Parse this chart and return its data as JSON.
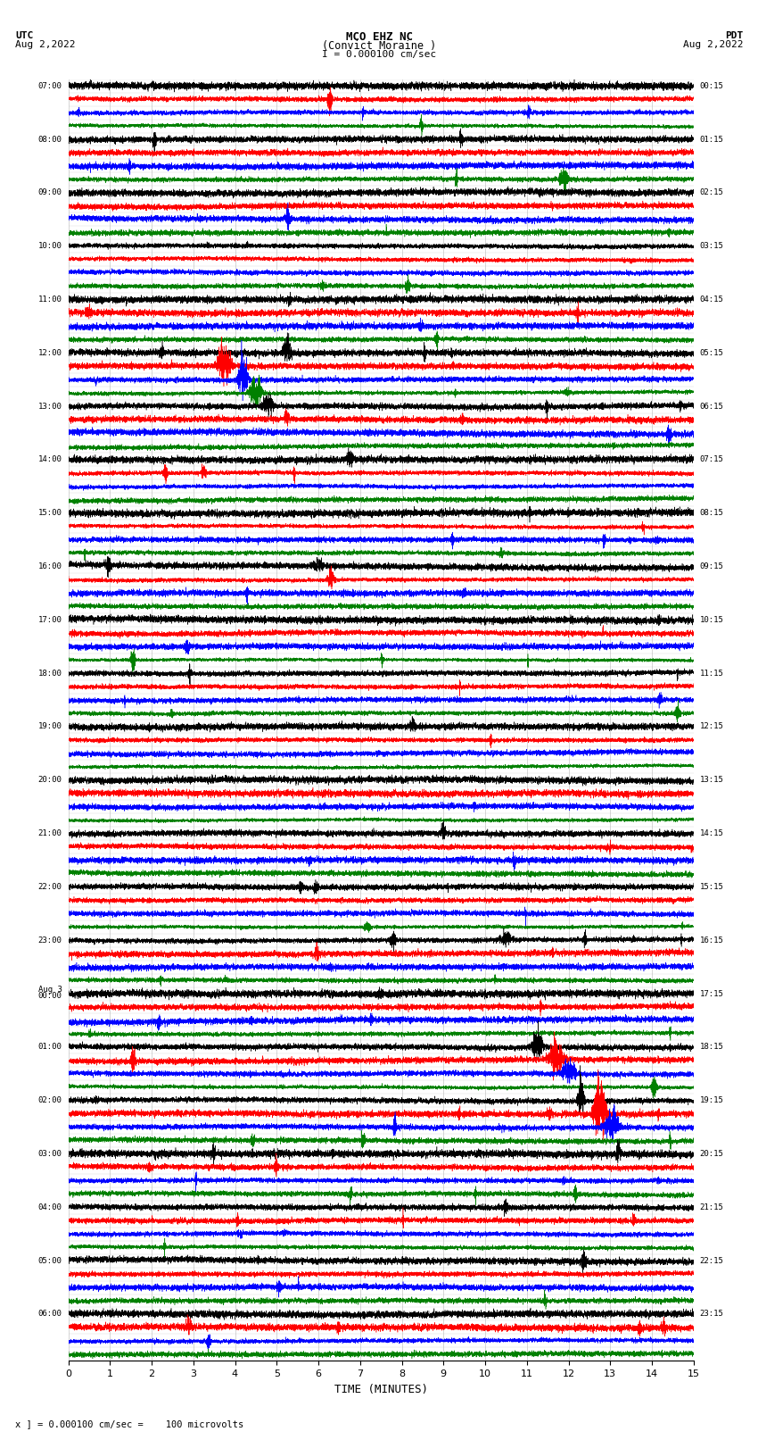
{
  "title_line1": "MCO EHZ NC",
  "title_line2": "(Convict Moraine )",
  "scale_label": "I = 0.000100 cm/sec",
  "utc_label": "UTC",
  "utc_date": "Aug 2,2022",
  "pdt_label": "PDT",
  "pdt_date": "Aug 2,2022",
  "bottom_label": "x ] = 0.000100 cm/sec =    100 microvolts",
  "xlabel": "TIME (MINUTES)",
  "background_color": "#ffffff",
  "trace_colors": [
    "#000000",
    "#ff0000",
    "#0000ff",
    "#008000"
  ],
  "n_rows": 96,
  "fig_width": 8.5,
  "fig_height": 16.13,
  "left_labels_utc": [
    "07:00",
    "",
    "",
    "",
    "08:00",
    "",
    "",
    "",
    "09:00",
    "",
    "",
    "",
    "10:00",
    "",
    "",
    "",
    "11:00",
    "",
    "",
    "",
    "12:00",
    "",
    "",
    "",
    "13:00",
    "",
    "",
    "",
    "14:00",
    "",
    "",
    "",
    "15:00",
    "",
    "",
    "",
    "16:00",
    "",
    "",
    "",
    "17:00",
    "",
    "",
    "",
    "18:00",
    "",
    "",
    "",
    "19:00",
    "",
    "",
    "",
    "20:00",
    "",
    "",
    "",
    "21:00",
    "",
    "",
    "",
    "22:00",
    "",
    "",
    "",
    "23:00",
    "",
    "",
    "",
    "Aug 3\n00:00",
    "",
    "",
    "",
    "01:00",
    "",
    "",
    "",
    "02:00",
    "",
    "",
    "",
    "03:00",
    "",
    "",
    "",
    "04:00",
    "",
    "",
    "",
    "05:00",
    "",
    "",
    "",
    "06:00",
    "",
    "",
    ""
  ],
  "right_labels_pdt": [
    "00:15",
    "",
    "",
    "",
    "01:15",
    "",
    "",
    "",
    "02:15",
    "",
    "",
    "",
    "03:15",
    "",
    "",
    "",
    "04:15",
    "",
    "",
    "",
    "05:15",
    "",
    "",
    "",
    "06:15",
    "",
    "",
    "",
    "07:15",
    "",
    "",
    "",
    "08:15",
    "",
    "",
    "",
    "09:15",
    "",
    "",
    "",
    "10:15",
    "",
    "",
    "",
    "11:15",
    "",
    "",
    "",
    "12:15",
    "",
    "",
    "",
    "13:15",
    "",
    "",
    "",
    "14:15",
    "",
    "",
    "",
    "15:15",
    "",
    "",
    "",
    "16:15",
    "",
    "",
    "",
    "17:15",
    "",
    "",
    "",
    "18:15",
    "",
    "",
    "",
    "19:15",
    "",
    "",
    "",
    "20:15",
    "",
    "",
    "",
    "21:15",
    "",
    "",
    "",
    "22:15",
    "",
    "",
    "",
    "23:15",
    "",
    "",
    ""
  ]
}
